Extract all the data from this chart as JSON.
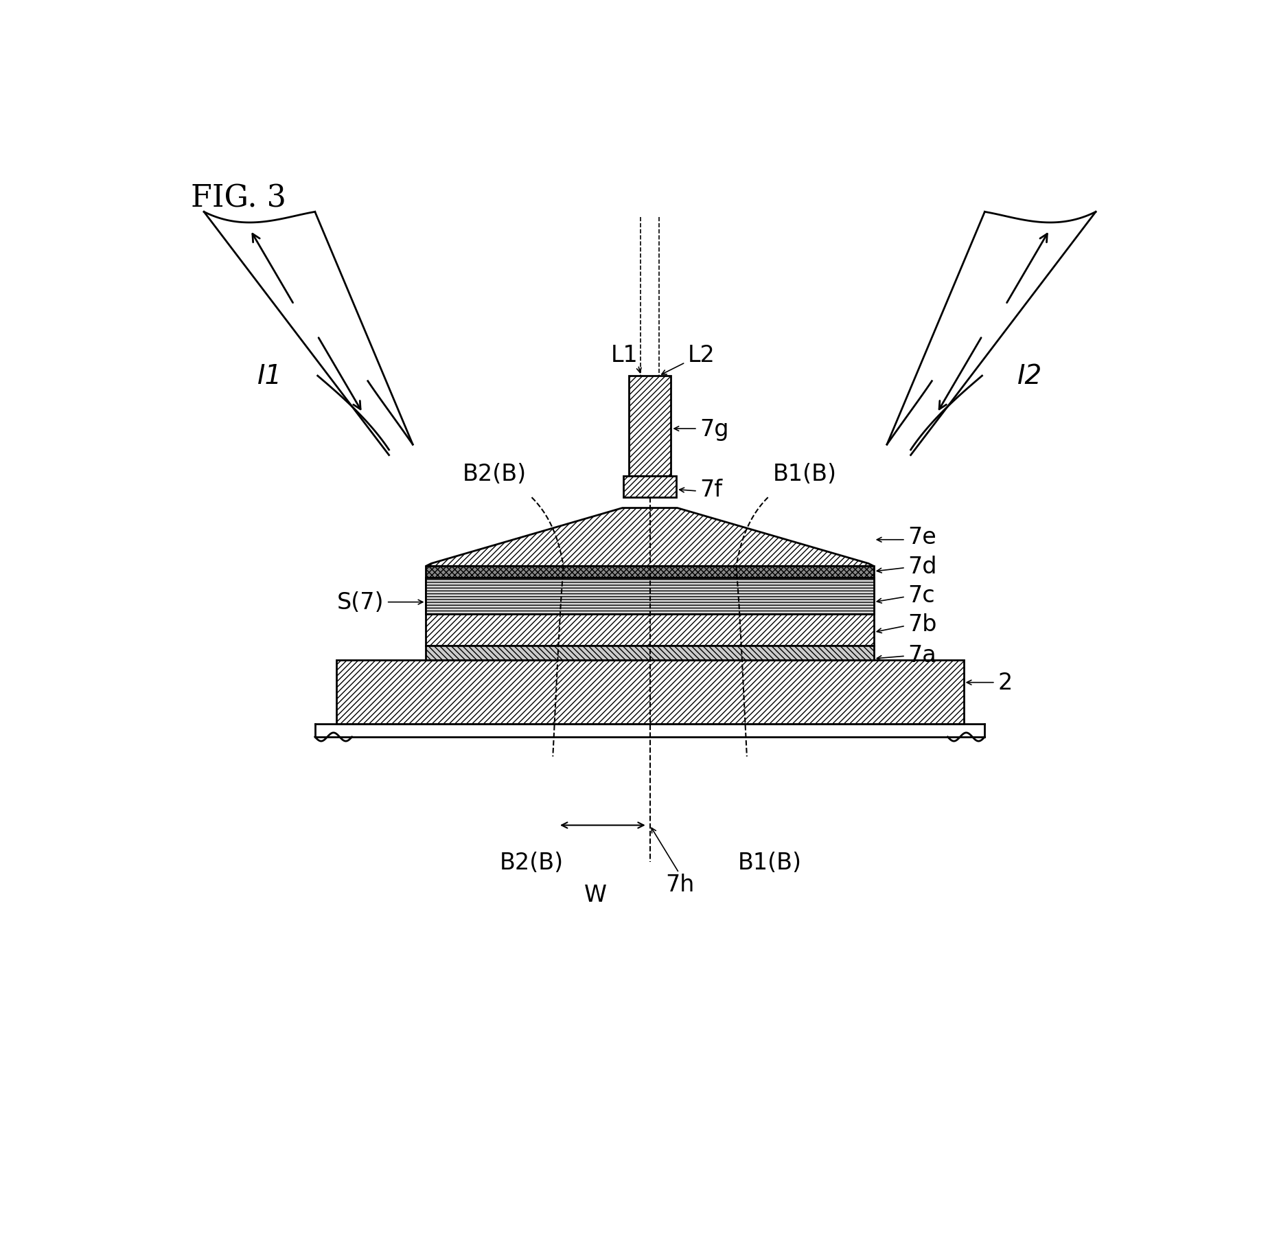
{
  "bg_color": "#ffffff",
  "lc": "#000000",
  "lw": 2.0,
  "lw_thin": 1.2,
  "fs": 24,
  "fig_label": "FIG. 3",
  "labels": {
    "L1": "L1",
    "L2": "L2",
    "I1": "I1",
    "I2": "I2",
    "7g": "7g",
    "7f": "7f",
    "7e": "7e",
    "7d": "7d",
    "7c": "7c",
    "7b": "7b",
    "7a": "7a",
    "S7": "S(7)",
    "B2B_top": "B2(B)",
    "B1B_top": "B1(B)",
    "B2B_bot": "B2(B)",
    "B1B_bot": "B1(B)",
    "W": "W",
    "7h": "7h",
    "2": "2"
  }
}
